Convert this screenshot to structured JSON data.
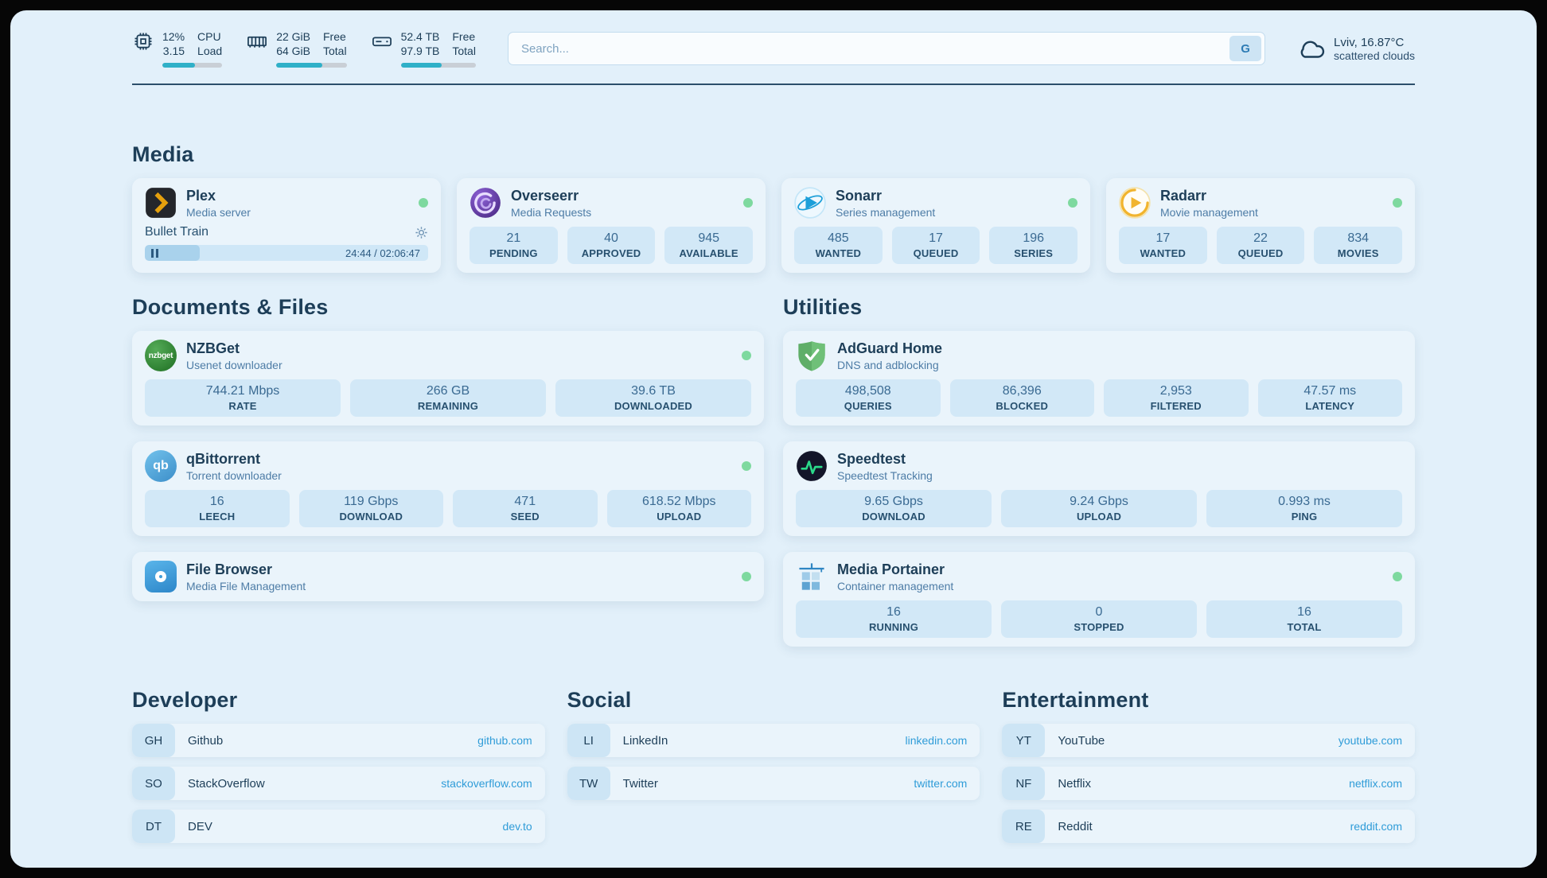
{
  "colors": {
    "page_bg": "#e2f0fa",
    "card_bg": "#eaf4fb",
    "stat_bg": "#d2e8f7",
    "heading": "#1d3e58",
    "subtitle": "#4d7ca6",
    "link": "#2f9cd8",
    "status_online": "#7ed99f",
    "bar_fill": "#2fb0c8",
    "bar_track": "#c9cfd6"
  },
  "topbar": {
    "cpu": {
      "icon": "cpu-chip-icon",
      "value_top": "12%",
      "value_bottom": "3.15",
      "label_top": "CPU",
      "label_bottom": "Load",
      "progress_pct": 55
    },
    "ram": {
      "icon": "memory-icon",
      "value_top": "22 GiB",
      "value_bottom": "64 GiB",
      "label_top": "Free",
      "label_bottom": "Total",
      "progress_pct": 65
    },
    "disk": {
      "icon": "hard-drive-icon",
      "value_top": "52.4 TB",
      "value_bottom": "97.9 TB",
      "label_top": "Free",
      "label_bottom": "Total",
      "progress_pct": 54
    },
    "search": {
      "placeholder": "Search...",
      "provider_button": "G"
    },
    "weather": {
      "icon": "cloud-icon",
      "location": "Lviv, 16.87°C",
      "condition": "scattered clouds"
    }
  },
  "sections": {
    "media": {
      "title": "Media",
      "plex": {
        "title": "Plex",
        "subtitle": "Media server",
        "status": "online",
        "icon": "plex-icon",
        "now_playing": "Bullet Train",
        "time": "24:44 / 02:06:47",
        "progress_pct": 19.5
      },
      "overseerr": {
        "title": "Overseerr",
        "subtitle": "Media Requests",
        "status": "online",
        "icon": "overseerr-icon",
        "stats": [
          {
            "value": "21",
            "label": "PENDING"
          },
          {
            "value": "40",
            "label": "APPROVED"
          },
          {
            "value": "945",
            "label": "AVAILABLE"
          }
        ]
      },
      "sonarr": {
        "title": "Sonarr",
        "subtitle": "Series management",
        "status": "online",
        "icon": "sonarr-icon",
        "stats": [
          {
            "value": "485",
            "label": "WANTED"
          },
          {
            "value": "17",
            "label": "QUEUED"
          },
          {
            "value": "196",
            "label": "SERIES"
          }
        ]
      },
      "radarr": {
        "title": "Radarr",
        "subtitle": "Movie management",
        "status": "online",
        "icon": "radarr-icon",
        "stats": [
          {
            "value": "17",
            "label": "WANTED"
          },
          {
            "value": "22",
            "label": "QUEUED"
          },
          {
            "value": "834",
            "label": "MOVIES"
          }
        ]
      }
    },
    "documents": {
      "title": "Documents & Files",
      "nzbget": {
        "title": "NZBGet",
        "subtitle": "Usenet downloader",
        "status": "online",
        "icon": "nzbget-icon",
        "icon_text": "nzbget",
        "stats": [
          {
            "value": "744.21 Mbps",
            "label": "RATE"
          },
          {
            "value": "266 GB",
            "label": "REMAINING"
          },
          {
            "value": "39.6 TB",
            "label": "DOWNLOADED"
          }
        ]
      },
      "qbittorrent": {
        "title": "qBittorrent",
        "subtitle": "Torrent downloader",
        "status": "online",
        "icon": "qbittorrent-icon",
        "icon_text": "qb",
        "stats": [
          {
            "value": "16",
            "label": "LEECH"
          },
          {
            "value": "119 Gbps",
            "label": "DOWNLOAD"
          },
          {
            "value": "471",
            "label": "SEED"
          },
          {
            "value": "618.52 Mbps",
            "label": "UPLOAD"
          }
        ]
      },
      "filebrowser": {
        "title": "File Browser",
        "subtitle": "Media File Management",
        "status": "online",
        "icon": "filebrowser-icon"
      }
    },
    "utilities": {
      "title": "Utilities",
      "adguard": {
        "title": "AdGuard Home",
        "subtitle": "DNS and adblocking",
        "icon": "adguard-icon",
        "stats": [
          {
            "value": "498,508",
            "label": "QUERIES"
          },
          {
            "value": "86,396",
            "label": "BLOCKED"
          },
          {
            "value": "2,953",
            "label": "FILTERED"
          },
          {
            "value": "47.57 ms",
            "label": "LATENCY"
          }
        ]
      },
      "speedtest": {
        "title": "Speedtest",
        "subtitle": "Speedtest Tracking",
        "icon": "speedtest-icon",
        "stats": [
          {
            "value": "9.65 Gbps",
            "label": "DOWNLOAD"
          },
          {
            "value": "9.24 Gbps",
            "label": "UPLOAD"
          },
          {
            "value": "0.993 ms",
            "label": "PING"
          }
        ]
      },
      "portainer": {
        "title": "Media Portainer",
        "subtitle": "Container management",
        "status": "online",
        "icon": "portainer-icon",
        "stats": [
          {
            "value": "16",
            "label": "RUNNING"
          },
          {
            "value": "0",
            "label": "STOPPED"
          },
          {
            "value": "16",
            "label": "TOTAL"
          }
        ]
      }
    }
  },
  "bookmarks": {
    "developer": {
      "title": "Developer",
      "items": [
        {
          "abbr": "GH",
          "name": "Github",
          "domain": "github.com"
        },
        {
          "abbr": "SO",
          "name": "StackOverflow",
          "domain": "stackoverflow.com"
        },
        {
          "abbr": "DT",
          "name": "DEV",
          "domain": "dev.to"
        }
      ]
    },
    "social": {
      "title": "Social",
      "items": [
        {
          "abbr": "LI",
          "name": "LinkedIn",
          "domain": "linkedin.com"
        },
        {
          "abbr": "TW",
          "name": "Twitter",
          "domain": "twitter.com"
        }
      ]
    },
    "entertainment": {
      "title": "Entertainment",
      "items": [
        {
          "abbr": "YT",
          "name": "YouTube",
          "domain": "youtube.com"
        },
        {
          "abbr": "NF",
          "name": "Netflix",
          "domain": "netflix.com"
        },
        {
          "abbr": "RE",
          "name": "Reddit",
          "domain": "reddit.com"
        }
      ]
    }
  }
}
